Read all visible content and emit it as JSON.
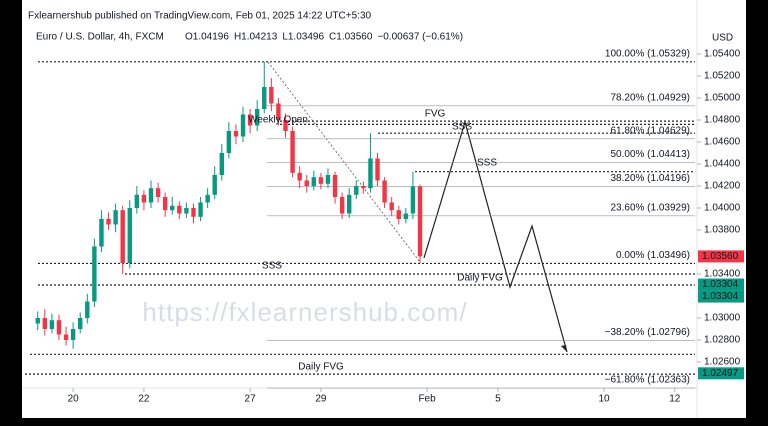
{
  "header": {
    "publisher": "Fxlearnershub published on TradingView.com, Feb 01, 2025 14:22 UTC+5:30",
    "symbol": "Euro / U.S. Dollar, 4h, FXCM",
    "ohlc": [
      "O1.04196",
      "H1.04213",
      "L1.03496",
      "C1.03560",
      "−0.00637 (−0.61%)"
    ],
    "currency": "USD",
    "watermark": "https://fxlearnershub.com/"
  },
  "chart_data": {
    "type": "candlestick",
    "x": [
      -1.0,
      -0.8,
      -0.6,
      -0.4,
      -0.2,
      0,
      0.2,
      0.4,
      0.6,
      0.8,
      1.0,
      1.2,
      1.4,
      1.6,
      1.8,
      2.0,
      2.2,
      2.4,
      2.6,
      2.8,
      3.0,
      3.2,
      3.4,
      3.6,
      3.8,
      4.0,
      4.2,
      4.4,
      4.6,
      4.8,
      5.0,
      5.2,
      5.4,
      5.6,
      5.8,
      6.0,
      6.2,
      6.4,
      6.6,
      6.8,
      7.0,
      7.2,
      7.4,
      7.6,
      7.8,
      8.0,
      8.2,
      8.4,
      8.6,
      8.8,
      9.0,
      9.2,
      9.4,
      9.6,
      9.8
    ],
    "open": [
      1.0295,
      1.03,
      1.029,
      1.0298,
      1.0285,
      1.028,
      1.029,
      1.03,
      1.0315,
      1.0365,
      1.039,
      1.0385,
      1.0398,
      1.035,
      1.04,
      1.0412,
      1.0405,
      1.0418,
      1.041,
      1.0398,
      1.0402,
      1.0395,
      1.04,
      1.0392,
      1.0405,
      1.0412,
      1.043,
      1.045,
      1.047,
      1.0465,
      1.0485,
      1.0475,
      1.049,
      1.051,
      1.0495,
      1.048,
      1.047,
      1.0432,
      1.0425,
      1.042,
      1.0428,
      1.0422,
      1.043,
      1.041,
      1.0395,
      1.0412,
      1.042,
      1.0418,
      1.0445,
      1.0425,
      1.0405,
      1.0398,
      1.039,
      1.0395,
      1.04196
    ],
    "high": [
      1.0306,
      1.0308,
      1.0304,
      1.0303,
      1.0292,
      1.0296,
      1.0305,
      1.0322,
      1.0372,
      1.0398,
      1.0396,
      1.0404,
      1.0402,
      1.0407,
      1.042,
      1.0416,
      1.0425,
      1.0423,
      1.0414,
      1.041,
      1.0406,
      1.0405,
      1.0404,
      1.041,
      1.0418,
      1.0438,
      1.0458,
      1.0478,
      1.0476,
      1.0492,
      1.049,
      1.0498,
      1.05329,
      1.0518,
      1.05,
      1.0486,
      1.0474,
      1.0438,
      1.043,
      1.0434,
      1.0432,
      1.0436,
      1.0433,
      1.0414,
      1.0418,
      1.0425,
      1.0424,
      1.0468,
      1.045,
      1.0428,
      1.041,
      1.0402,
      1.04,
      1.0433,
      1.04213
    ],
    "low": [
      1.0289,
      1.0284,
      1.0286,
      1.028,
      1.0275,
      1.0272,
      1.0286,
      1.0295,
      1.031,
      1.036,
      1.038,
      1.0378,
      1.034,
      1.0345,
      1.0395,
      1.0398,
      1.04,
      1.0405,
      1.0392,
      1.0394,
      1.039,
      1.0391,
      1.0386,
      1.0388,
      1.04,
      1.0408,
      1.0425,
      1.0445,
      1.0458,
      1.046,
      1.0468,
      1.047,
      1.0486,
      1.0488,
      1.0475,
      1.0464,
      1.0428,
      1.0418,
      1.0414,
      1.0416,
      1.0417,
      1.0418,
      1.0404,
      1.039,
      1.0391,
      1.0408,
      1.0413,
      1.0414,
      1.042,
      1.04,
      1.0393,
      1.0385,
      1.0386,
      1.039,
      1.03496
    ],
    "close": [
      1.03,
      1.029,
      1.0298,
      1.0285,
      1.028,
      1.029,
      1.03,
      1.0315,
      1.0365,
      1.039,
      1.0385,
      1.0398,
      1.035,
      1.04,
      1.0412,
      1.0405,
      1.0418,
      1.041,
      1.0398,
      1.0402,
      1.0395,
      1.04,
      1.0392,
      1.0405,
      1.0412,
      1.043,
      1.045,
      1.047,
      1.0465,
      1.0485,
      1.0475,
      1.049,
      1.051,
      1.0495,
      1.048,
      1.047,
      1.0432,
      1.0425,
      1.042,
      1.0428,
      1.0422,
      1.043,
      1.041,
      1.0395,
      1.0412,
      1.042,
      1.0418,
      1.0445,
      1.0425,
      1.0405,
      1.0398,
      1.039,
      1.0395,
      1.04196,
      1.0356
    ],
    "up_color": "#089981",
    "down_color": "#f23645",
    "xlim": [
      -1.36,
      17.57
    ],
    "xticks": [
      {
        "value": 0,
        "label": "20"
      },
      {
        "value": 2,
        "label": "22"
      },
      {
        "value": 5,
        "label": "27"
      },
      {
        "value": 7,
        "label": "29"
      },
      {
        "value": 10,
        "label": "Feb"
      },
      {
        "value": 12,
        "label": "5"
      },
      {
        "value": 15,
        "label": "10"
      },
      {
        "value": 17,
        "label": "12"
      }
    ],
    "ylim": [
      1.0235,
      1.0555
    ],
    "yticks": [
      {
        "value": 1.054,
        "label": "1.05400"
      },
      {
        "value": 1.052,
        "label": "1.05200"
      },
      {
        "value": 1.05,
        "label": "1.05000"
      },
      {
        "value": 1.048,
        "label": "1.04800"
      },
      {
        "value": 1.046,
        "label": "1.04600"
      },
      {
        "value": 1.044,
        "label": "1.04400"
      },
      {
        "value": 1.042,
        "label": "1.04200"
      },
      {
        "value": 1.04,
        "label": "1.04000"
      },
      {
        "value": 1.038,
        "label": "1.03800"
      },
      {
        "value": 1.034,
        "label": "1.03400"
      },
      {
        "value": 1.03,
        "label": "1.03000"
      },
      {
        "value": 1.028,
        "label": "1.02800"
      },
      {
        "value": 1.026,
        "label": "1.02600"
      }
    ],
    "fib_levels": [
      {
        "value": 1.05329,
        "label": "100.00% (1.05329)"
      },
      {
        "value": 1.04929,
        "label": "78.20% (1.04929)"
      },
      {
        "value": 1.04629,
        "label": "61.80% (1.04629)"
      },
      {
        "value": 1.04413,
        "label": "50.00% (1.04413)"
      },
      {
        "value": 1.04196,
        "label": "38.20% (1.04196)"
      },
      {
        "value": 1.03929,
        "label": "23.60% (1.03929)"
      },
      {
        "value": 1.03496,
        "label": "0.00% (1.03496)"
      },
      {
        "value": 1.02796,
        "label": "−38.20% (1.02796)"
      },
      {
        "value": 1.02363,
        "label": "−61.80% (1.02363)"
      }
    ],
    "key_levels": [
      1.0479,
      1.0476,
      1.0468,
      1.0433,
      1.034,
      1.033,
      1.0267,
      1.0249
    ],
    "price_tags": [
      {
        "value": 1.0356,
        "label": "1.03560",
        "color": "#f23645"
      },
      {
        "value": 1.03304,
        "label": "1.03304",
        "color": "#089981"
      },
      {
        "value": 1.03304,
        "label": "1.03304",
        "color": "#089981"
      },
      {
        "value": 1.02497,
        "label": "1.02497",
        "color": "#089981"
      }
    ],
    "annotations": [
      "FVG",
      "SSS",
      "SSS",
      "Weekly Open",
      "SSS",
      "Daily FVG",
      "Daily FVG"
    ]
  }
}
